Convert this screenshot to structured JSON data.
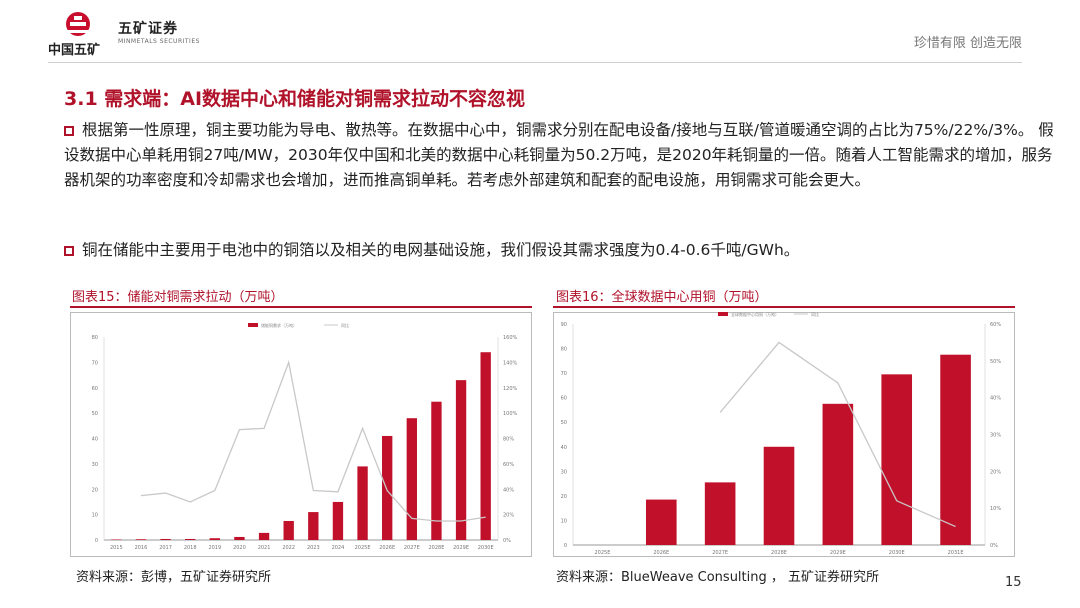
{
  "header": {
    "group_name": "中国五矿",
    "brand_cn": "五矿证券",
    "brand_en": "MINMETALS SECURITIES",
    "slogan": "珍惜有限  创造无限"
  },
  "title": "3.1 需求端：AI数据中心和储能对铜需求拉动不容忽视",
  "paragraphs": [
    "根据第一性原理，铜主要功能为导电、散热等。在数据中心中，铜需求分别在配电设备/接地与互联/管道暖通空调的占比为75%/22%/3%。 假设数据中心单耗用铜27吨/MW，2030年仅中国和北美的数据中心耗铜量为50.2万吨，是2020年耗铜量的一倍。随着人工智能需求的增加，服务器机架的功率密度和冷却需求也会增加，进而推高铜单耗。若考虑外部建筑和配套的配电设施，用铜需求可能会更大。",
    "铜在储能中主要用于电池中的铜箔以及相关的电网基础设施，我们假设其需求强度为0.4-0.6千吨/GWh。"
  ],
  "figures": [
    {
      "title": "图表15：储能对铜需求拉动（万吨）",
      "source": "资料来源：彭博，五矿证券研究所"
    },
    {
      "title": "图表16：全球数据中心用铜（万吨）",
      "source": "资料来源：BlueWeave Consulting ， 五矿证券研究所"
    }
  ],
  "page_number": "15",
  "colors": {
    "accent": "#b0122a",
    "bar": "#c0102a",
    "line": "#c8c8c8"
  },
  "chart_data": [
    {
      "type": "bar",
      "categories": [
        "2015",
        "2016",
        "2017",
        "2018",
        "2019",
        "2020",
        "2021",
        "2022",
        "2023",
        "2024",
        "2025E",
        "2026E",
        "2027E",
        "2028E",
        "2029E",
        "2030E"
      ],
      "series": [
        {
          "name": "储能铜需求（万吨）",
          "type": "bar",
          "axis": "left",
          "values": [
            0.2,
            0.3,
            0.4,
            0.4,
            0.7,
            1.2,
            2.8,
            7.5,
            11,
            15,
            29,
            41,
            48,
            54.5,
            63,
            74
          ]
        },
        {
          "name": "同比",
          "type": "line",
          "axis": "right",
          "values": [
            null,
            35,
            37,
            30,
            39,
            87,
            88,
            140,
            39,
            38,
            88,
            39,
            17,
            15,
            15,
            18
          ]
        }
      ],
      "ylim_left": [
        0,
        80
      ],
      "yticks_left": [
        0,
        10,
        20,
        30,
        40,
        50,
        60,
        70,
        80
      ],
      "ylim_right": [
        0,
        160
      ],
      "yticks_right": [
        "0%",
        "20%",
        "40%",
        "60%",
        "80%",
        "100%",
        "120%",
        "140%",
        "160%"
      ],
      "legend": "top-center"
    },
    {
      "type": "bar",
      "categories": [
        "2025E",
        "2026E",
        "2027E",
        "2028E",
        "2029E",
        "2030E",
        "2031E"
      ],
      "series": [
        {
          "name": "全球数据中心用铜（万吨）",
          "type": "bar",
          "axis": "left",
          "values": [
            0,
            18.5,
            25.5,
            40,
            57.5,
            69.5,
            77.5
          ]
        },
        {
          "name": "同比",
          "type": "line",
          "axis": "right",
          "values": [
            null,
            null,
            36,
            55,
            44,
            12,
            5
          ]
        }
      ],
      "ylim_left": [
        0,
        90
      ],
      "yticks_left": [
        0,
        10,
        20,
        30,
        40,
        50,
        60,
        70,
        80,
        90
      ],
      "ylim_right": [
        0,
        60
      ],
      "yticks_right": [
        "0%",
        "10%",
        "20%",
        "30%",
        "40%",
        "50%",
        "60%"
      ],
      "legend": "top-center"
    }
  ]
}
